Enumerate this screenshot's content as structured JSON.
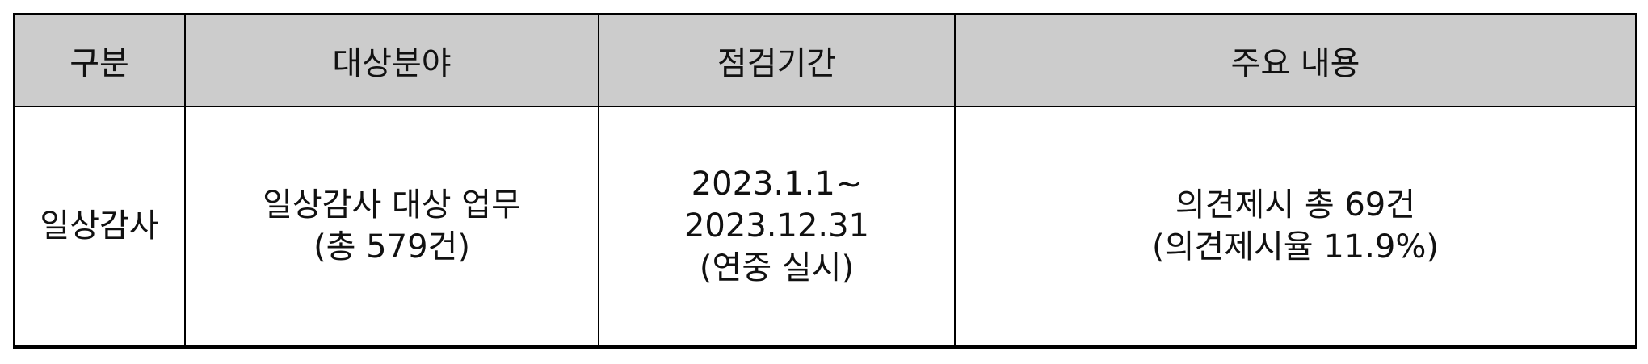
{
  "table": {
    "headers": [
      "구분",
      "대상분야",
      "점검기간",
      "주요 내용"
    ],
    "row": {
      "category": "일상감사",
      "target": [
        "일상감사 대상 업무",
        "(총 579건)"
      ],
      "period": [
        "2023.1.1~",
        "2023.12.31",
        "(연중 실시)"
      ],
      "content": [
        "의견제시 총 69건",
        "(의견제시율 11.9%)"
      ]
    }
  }
}
